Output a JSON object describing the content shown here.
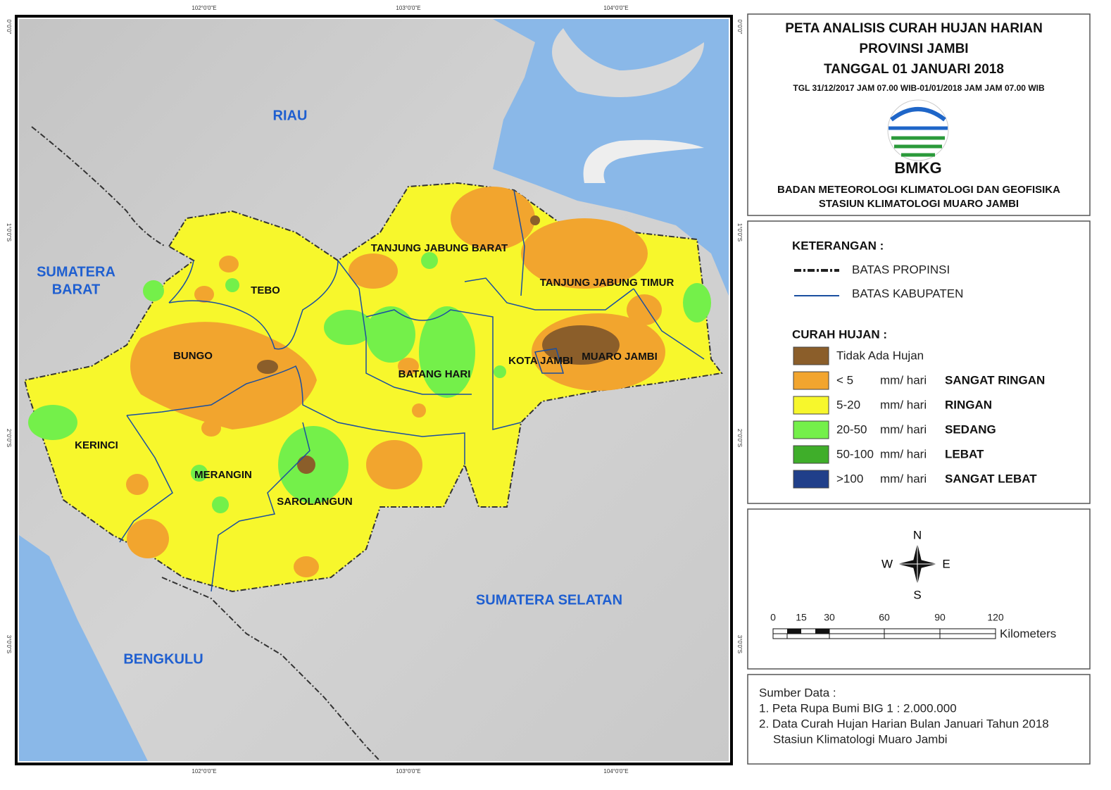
{
  "map": {
    "lon_labels": [
      "102°0'0\"E",
      "103°0'0\"E",
      "104°0'0\"E"
    ],
    "lat_labels": [
      "0°0'0\"",
      "1°0'0\"S",
      "2°0'0\"S",
      "3°0'0\"S"
    ],
    "provinces": [
      {
        "lines": [
          "RIAU"
        ]
      },
      {
        "lines": [
          "SUMATERA",
          "BARAT"
        ]
      },
      {
        "lines": [
          "BENGKULU"
        ]
      },
      {
        "lines": [
          "SUMATERA SELATAN"
        ]
      }
    ],
    "regencies": [
      "TEBO",
      "BUNGO",
      "KERINCI",
      "MERANGIN",
      "SAROLANGUN",
      "BATANG HARI",
      "TANJUNG JABUNG BARAT",
      "TANJUNG JABUNG TIMUR",
      "KOTA JAMBI",
      "MUARO JAMBI"
    ]
  },
  "header": {
    "title": "PETA ANALISIS CURAH HUJAN HARIAN",
    "subtitle": "PROVINSI JAMBI",
    "date": "TANGGAL 01 JANUARI 2018",
    "period": "TGL 31/12/2017 JAM 07.00 WIB-01/01/2018 JAM JAM 07.00 WIB",
    "logo_text": "BMKG",
    "agency": "BADAN METEOROLOGI KLIMATOLOGI DAN GEOFISIKA",
    "station": "STASIUN KLIMATOLOGI MUARO JAMBI"
  },
  "legend": {
    "title": "KETERANGAN :",
    "lines": [
      "BATAS PROPINSI",
      "BATAS KABUPATEN"
    ],
    "rain_title": "CURAH HUJAN :",
    "no_rain": {
      "label": "Tidak Ada Hujan",
      "color": "#8b5e2a"
    },
    "classes": [
      {
        "range": "< 5",
        "unit": "mm/ hari",
        "name": "SANGAT RINGAN",
        "color": "#f2a52e"
      },
      {
        "range": "5-20",
        "unit": "mm/ hari",
        "name": "RINGAN",
        "color": "#f7f72c"
      },
      {
        "range": "20-50",
        "unit": "mm/ hari",
        "name": "SEDANG",
        "color": "#74f04a"
      },
      {
        "range": "50-100",
        "unit": "mm/ hari",
        "name": "LEBAT",
        "color": "#3fae2a"
      },
      {
        "range": ">100",
        "unit": "mm/ hari",
        "name": "SANGAT LEBAT",
        "color": "#203f8a"
      }
    ]
  },
  "compass": {
    "n": "N",
    "s": "S",
    "e": "E",
    "w": "W"
  },
  "scale": {
    "ticks": [
      "0",
      "15",
      "30",
      "60",
      "90",
      "120"
    ],
    "unit": "Kilometers"
  },
  "source": {
    "title": "Sumber Data :",
    "items": [
      "1. Peta Rupa Bumi BIG 1 : 2.000.000",
      "2. Data Curah Hujan Harian Bulan Januari Tahun 2018",
      "Stasiun Klimatologi Muaro Jambi"
    ]
  }
}
